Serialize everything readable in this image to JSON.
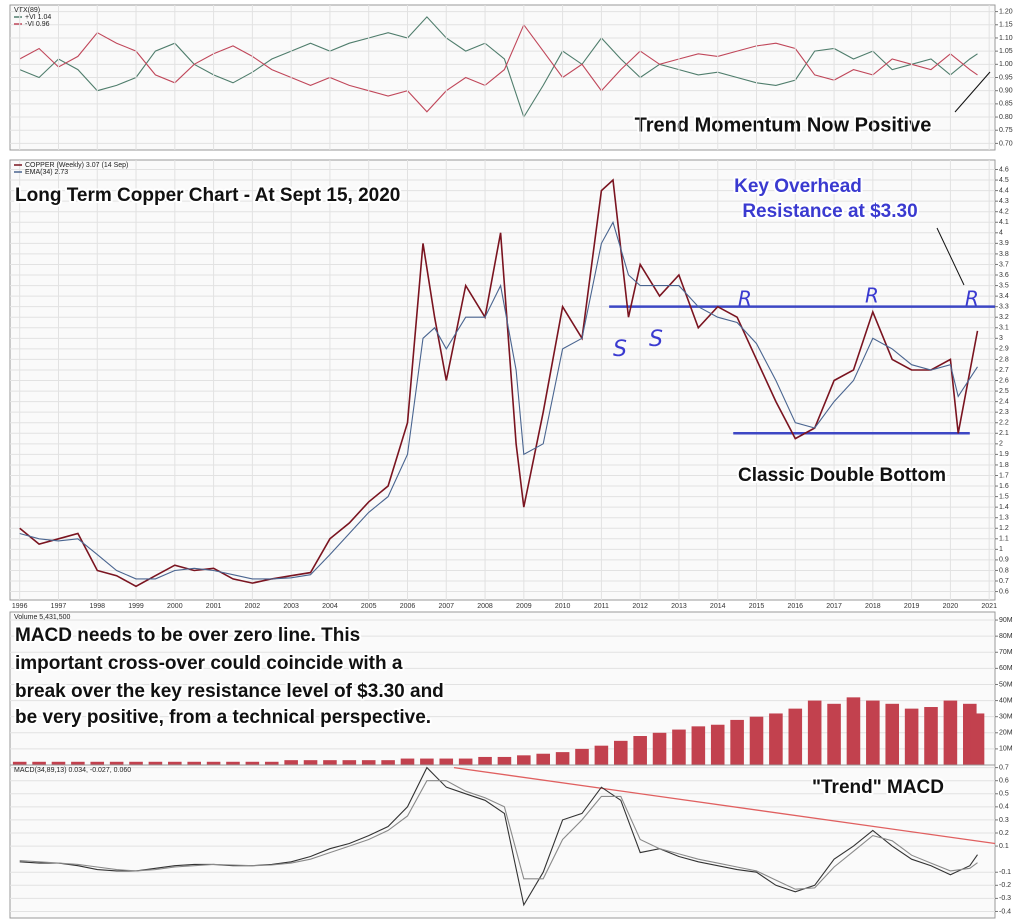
{
  "chart_data": [
    {
      "type": "line",
      "title": "VTX(89)",
      "x": [
        1996,
        1996.5,
        1997,
        1997.5,
        1998,
        1998.5,
        1999,
        1999.5,
        2000,
        2000.5,
        2001,
        2001.5,
        2002,
        2002.5,
        2003,
        2003.5,
        2004,
        2004.5,
        2005,
        2005.5,
        2006,
        2006.5,
        2007,
        2007.5,
        2008,
        2008.5,
        2009,
        2009.5,
        2010,
        2010.5,
        2011,
        2011.5,
        2012,
        2012.5,
        2013,
        2013.5,
        2014,
        2014.5,
        2015,
        2015.5,
        2016,
        2016.5,
        2017,
        2017.5,
        2018,
        2018.5,
        2019,
        2019.5,
        2020,
        2020.5,
        2020.7
      ],
      "series": [
        {
          "name": "+VI 1.04",
          "color": "#4f7d6c",
          "values": [
            0.98,
            0.95,
            1.02,
            0.98,
            0.9,
            0.92,
            0.95,
            1.05,
            1.08,
            1.0,
            0.96,
            0.93,
            0.97,
            1.02,
            1.05,
            1.08,
            1.05,
            1.08,
            1.1,
            1.12,
            1.1,
            1.18,
            1.1,
            1.05,
            1.08,
            1.02,
            0.8,
            0.92,
            1.05,
            1.0,
            1.1,
            1.02,
            0.95,
            1.0,
            0.98,
            0.96,
            0.97,
            0.95,
            0.93,
            0.92,
            0.94,
            1.05,
            1.06,
            1.02,
            1.05,
            0.98,
            1.0,
            1.02,
            0.96,
            1.02,
            1.04
          ]
        },
        {
          "name": "-VI 0.96",
          "color": "#c0475a",
          "values": [
            1.02,
            1.06,
            0.99,
            1.03,
            1.12,
            1.08,
            1.05,
            0.96,
            0.93,
            1.0,
            1.04,
            1.07,
            1.03,
            0.98,
            0.95,
            0.92,
            0.95,
            0.92,
            0.9,
            0.88,
            0.9,
            0.82,
            0.9,
            0.95,
            0.92,
            0.98,
            1.15,
            1.05,
            0.95,
            1.0,
            0.9,
            0.98,
            1.05,
            1.0,
            1.02,
            1.04,
            1.03,
            1.05,
            1.07,
            1.08,
            1.06,
            0.96,
            0.94,
            0.98,
            0.96,
            1.02,
            1.0,
            0.98,
            1.04,
            0.98,
            0.96
          ]
        }
      ],
      "xlim": [
        1995.75,
        2021.15
      ],
      "ylim": [
        0.675,
        1.225
      ],
      "yticks": [
        {
          "value": 0.7,
          "label": "0.70"
        },
        0.75,
        {
          "value": 0.8,
          "label": "0.80"
        },
        0.85,
        {
          "value": 0.9,
          "label": "0.90"
        },
        0.95,
        {
          "value": 1,
          "label": "1.00"
        },
        1.05,
        {
          "value": 1.1,
          "label": "1.10"
        },
        1.15,
        {
          "value": 1.2,
          "label": "1.20"
        }
      ],
      "grid": true,
      "annotations": [
        "Trend Momentum Now Positive"
      ]
    },
    {
      "type": "line",
      "x": [
        1996,
        1996.5,
        1997,
        1997.5,
        1998,
        1998.5,
        1999,
        1999.5,
        2000,
        2000.5,
        2001,
        2001.5,
        2002,
        2002.5,
        2003,
        2003.5,
        2004,
        2004.5,
        2005,
        2005.5,
        2006,
        2006.4,
        2006.7,
        2007,
        2007.5,
        2008,
        2008.4,
        2008.8,
        2009,
        2009.5,
        2010,
        2010.5,
        2011,
        2011.3,
        2011.7,
        2012,
        2012.5,
        2013,
        2013.5,
        2014,
        2014.5,
        2015,
        2015.5,
        2016,
        2016.5,
        2017,
        2017.5,
        2018,
        2018.5,
        2019,
        2019.5,
        2020,
        2020.2,
        2020.7
      ],
      "series": [
        {
          "name": "COPPER (Weekly) 3.07 (14 Sep)",
          "color": "#7a1420",
          "values": [
            1.2,
            1.05,
            1.1,
            1.15,
            0.8,
            0.75,
            0.65,
            0.75,
            0.85,
            0.8,
            0.82,
            0.72,
            0.68,
            0.72,
            0.75,
            0.78,
            1.1,
            1.25,
            1.45,
            1.6,
            2.2,
            3.9,
            3.2,
            2.6,
            3.5,
            3.2,
            4.0,
            2.0,
            1.4,
            2.3,
            3.3,
            3.0,
            4.4,
            4.5,
            3.2,
            3.7,
            3.4,
            3.6,
            3.1,
            3.3,
            3.2,
            2.8,
            2.4,
            2.05,
            2.15,
            2.6,
            2.7,
            3.25,
            2.8,
            2.7,
            2.7,
            2.8,
            2.1,
            3.07
          ]
        },
        {
          "name": "EMA(34) 2.73",
          "color": "#4a6590",
          "values": [
            1.15,
            1.1,
            1.08,
            1.1,
            0.95,
            0.8,
            0.72,
            0.72,
            0.8,
            0.82,
            0.8,
            0.76,
            0.72,
            0.72,
            0.73,
            0.76,
            0.95,
            1.15,
            1.35,
            1.5,
            1.9,
            3.0,
            3.1,
            2.9,
            3.2,
            3.2,
            3.5,
            2.7,
            1.9,
            2.0,
            2.9,
            3.0,
            3.9,
            4.1,
            3.6,
            3.5,
            3.5,
            3.5,
            3.3,
            3.2,
            3.15,
            2.95,
            2.6,
            2.2,
            2.15,
            2.4,
            2.6,
            3.0,
            2.9,
            2.75,
            2.7,
            2.75,
            2.45,
            2.73
          ]
        }
      ],
      "xlim": [
        1995.75,
        2021.15
      ],
      "ylim": [
        0.52,
        4.69
      ],
      "xticks": [
        1996,
        1997,
        1998,
        1999,
        2000,
        2001,
        2002,
        2003,
        2004,
        2005,
        2006,
        2007,
        2008,
        2009,
        2010,
        2011,
        2012,
        2013,
        2014,
        2015,
        2016,
        2017,
        2018,
        2019,
        2020,
        2021
      ],
      "yticks": [
        0.6,
        0.7,
        0.8,
        0.9,
        1.0,
        1.1,
        1.2,
        1.3,
        1.4,
        1.5,
        1.6,
        1.7,
        1.8,
        1.9,
        2.0,
        2.1,
        2.2,
        2.3,
        2.4,
        2.5,
        2.6,
        2.7,
        2.8,
        2.9,
        3.0,
        3.1,
        3.2,
        3.3,
        3.4,
        3.5,
        3.6,
        3.7,
        3.8,
        3.9,
        4.0,
        4.1,
        4.2,
        4.3,
        4.4,
        4.5,
        4.6
      ],
      "grid": true,
      "levels": [
        {
          "x": [
            2011.2,
            2021.15
          ],
          "value": 3.3,
          "color": "#3d47c4"
        },
        {
          "x": [
            2014.4,
            2020.5
          ],
          "value": 2.1,
          "color": "#3d47c4"
        }
      ],
      "annotations": [
        "Long Term Copper Chart - At Sept 15, 2020",
        "Key Overhead",
        "Resistance at $3.30",
        "Classic Double Bottom",
        "S",
        "S",
        "R",
        "R",
        "R"
      ]
    },
    {
      "type": "bar",
      "title": "Volume 5,431,500",
      "color": "#c2414e",
      "x": [
        1996,
        1996.5,
        1997,
        1997.5,
        1998,
        1998.5,
        1999,
        1999.5,
        2000,
        2000.5,
        2001,
        2001.5,
        2002,
        2002.5,
        2003,
        2003.5,
        2004,
        2004.5,
        2005,
        2005.5,
        2006,
        2006.5,
        2007,
        2007.5,
        2008,
        2008.5,
        2009,
        2009.5,
        2010,
        2010.5,
        2011,
        2011.5,
        2012,
        2012.5,
        2013,
        2013.5,
        2014,
        2014.5,
        2015,
        2015.5,
        2016,
        2016.5,
        2017,
        2017.5,
        2018,
        2018.5,
        2019,
        2019.5,
        2020,
        2020.5,
        2020.7
      ],
      "values": [
        2,
        2,
        2,
        2,
        2,
        2,
        2,
        2,
        2,
        2,
        2,
        2,
        2,
        2,
        3,
        3,
        3,
        3,
        3,
        3,
        4,
        4,
        4,
        4,
        5,
        5,
        6,
        7,
        8,
        10,
        12,
        15,
        18,
        20,
        22,
        24,
        25,
        28,
        30,
        32,
        35,
        40,
        38,
        42,
        40,
        38,
        35,
        36,
        40,
        38,
        32
      ],
      "xlim": [
        1995.75,
        2021.15
      ],
      "ylim": [
        0,
        95
      ],
      "yticks": [
        {
          "value": 10,
          "label": "10M"
        },
        {
          "value": 20,
          "label": "20M"
        },
        {
          "value": 30,
          "label": "30M"
        },
        {
          "value": 40,
          "label": "40M"
        },
        {
          "value": 50,
          "label": "50M"
        },
        {
          "value": 60,
          "label": "60M"
        },
        {
          "value": 70,
          "label": "70M"
        },
        {
          "value": 80,
          "label": "80M"
        },
        {
          "value": 90,
          "label": "90M"
        }
      ],
      "grid": true,
      "annotations": [
        "MACD needs to be over zero line.  This",
        "important cross-over could coincide with a",
        "break over the key resistance level of $3.30 and",
        "be very positive, from a technical perspective."
      ]
    },
    {
      "type": "line",
      "title": "MACD(34,89,13) 0.034, -0.027, 0.060",
      "x": [
        1996,
        1996.5,
        1997,
        1997.5,
        1998,
        1998.5,
        1999,
        1999.5,
        2000,
        2000.5,
        2001,
        2001.5,
        2002,
        2002.5,
        2003,
        2003.5,
        2004,
        2004.5,
        2005,
        2005.5,
        2006,
        2006.5,
        2007,
        2007.5,
        2008,
        2008.5,
        2009,
        2009.5,
        2010,
        2010.5,
        2011,
        2011.5,
        2012,
        2012.5,
        2013,
        2013.5,
        2014,
        2014.5,
        2015,
        2015.5,
        2016,
        2016.5,
        2017,
        2017.5,
        2018,
        2018.5,
        2019,
        2019.5,
        2020,
        2020.5,
        2020.7
      ],
      "series": [
        {
          "color": "#333333",
          "values": [
            -0.02,
            -0.03,
            -0.03,
            -0.05,
            -0.08,
            -0.09,
            -0.09,
            -0.07,
            -0.05,
            -0.04,
            -0.04,
            -0.05,
            -0.05,
            -0.04,
            -0.02,
            0.02,
            0.08,
            0.12,
            0.18,
            0.25,
            0.4,
            0.7,
            0.55,
            0.5,
            0.45,
            0.35,
            -0.35,
            -0.1,
            0.3,
            0.35,
            0.55,
            0.45,
            0.05,
            0.08,
            0.02,
            -0.02,
            -0.05,
            -0.08,
            -0.1,
            -0.2,
            -0.25,
            -0.2,
            0.0,
            0.1,
            0.22,
            0.1,
            0.0,
            -0.05,
            -0.12,
            -0.05,
            0.034
          ]
        },
        {
          "color": "#8a8a8a",
          "values": [
            -0.01,
            -0.02,
            -0.03,
            -0.04,
            -0.06,
            -0.08,
            -0.09,
            -0.08,
            -0.06,
            -0.05,
            -0.04,
            -0.045,
            -0.05,
            -0.045,
            -0.03,
            0.0,
            0.05,
            0.1,
            0.15,
            0.22,
            0.33,
            0.6,
            0.6,
            0.52,
            0.47,
            0.4,
            -0.15,
            -0.15,
            0.15,
            0.3,
            0.48,
            0.48,
            0.15,
            0.08,
            0.04,
            0.0,
            -0.03,
            -0.06,
            -0.09,
            -0.16,
            -0.23,
            -0.22,
            -0.06,
            0.06,
            0.18,
            0.14,
            0.03,
            -0.03,
            -0.09,
            -0.07,
            -0.027
          ]
        }
      ],
      "xlim": [
        1995.75,
        2021.15
      ],
      "ylim": [
        -0.45,
        0.72
      ],
      "yticks": [
        -0.4,
        -0.3,
        -0.2,
        -0.1,
        0.1,
        0.2,
        0.3,
        0.4,
        0.5,
        0.6,
        0.7
      ],
      "grid": true,
      "trendline": {
        "x": [
          2007.2,
          2021.15
        ],
        "values": [
          0.7,
          0.12
        ],
        "color": "#e06060"
      },
      "annotations": [
        "\"Trend\" MACD"
      ]
    }
  ]
}
